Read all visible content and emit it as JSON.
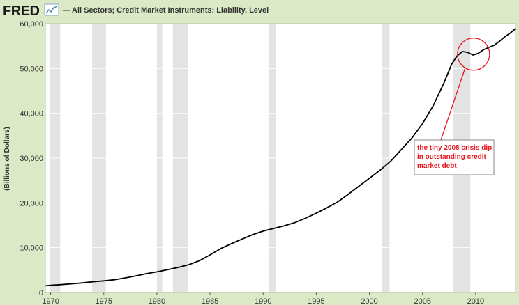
{
  "header": {
    "logo_text": "FRED",
    "logo_icon": "line-chart-icon",
    "legend_marker": "—",
    "series_title": "All Sectors; Credit Market Instruments; Liability, Level"
  },
  "colors": {
    "background": "#dbe9c6",
    "plot_background": "#ffffff",
    "recession_shade": "#e3e3e3",
    "series_line": "#000000",
    "annotation": "#e8141b"
  },
  "chart_data": {
    "type": "line",
    "title": "All Sectors; Credit Market Instruments; Liability, Level",
    "xlabel": "",
    "ylabel": "(Billions of Dollars)",
    "xlim": [
      1969.5,
      2013.75
    ],
    "ylim": [
      0,
      60000
    ],
    "grid": true,
    "x_ticks": [
      1970,
      1975,
      1980,
      1985,
      1990,
      1995,
      2000,
      2005,
      2010
    ],
    "y_ticks": [
      0,
      10000,
      20000,
      30000,
      40000,
      50000,
      60000
    ],
    "x_tick_labels": [
      "1970",
      "1975",
      "1980",
      "1985",
      "1990",
      "1995",
      "2000",
      "2005",
      "2010"
    ],
    "y_tick_labels": [
      "0",
      "10,000",
      "20,000",
      "30,000",
      "40,000",
      "50,000",
      "60,000"
    ],
    "recessions": [
      [
        1969.9,
        1970.9
      ],
      [
        1973.9,
        1975.2
      ],
      [
        1980.0,
        1980.5
      ],
      [
        1981.5,
        1982.9
      ],
      [
        1990.5,
        1991.2
      ],
      [
        2001.2,
        2001.9
      ],
      [
        2007.9,
        2009.5
      ]
    ],
    "series": [
      {
        "x": [
          1969.5,
          1970,
          1971,
          1972,
          1973,
          1974,
          1975,
          1976,
          1977,
          1978,
          1979,
          1980,
          1981,
          1982,
          1983,
          1984,
          1985,
          1986,
          1987,
          1988,
          1989,
          1990,
          1991,
          1992,
          1993,
          1994,
          1995,
          1996,
          1997,
          1998,
          1999,
          2000,
          2001,
          2002,
          2003,
          2004,
          2005,
          2006,
          2007,
          2007.75,
          2008.25,
          2008.75,
          2009.25,
          2009.75,
          2010.25,
          2010.75,
          2011.25,
          2011.75,
          2012.25,
          2012.75,
          2013.25,
          2013.75
        ],
        "values": [
          1500,
          1600,
          1750,
          1950,
          2150,
          2400,
          2600,
          2850,
          3250,
          3700,
          4200,
          4600,
          5100,
          5600,
          6200,
          7100,
          8400,
          9800,
          10900,
          11900,
          12900,
          13700,
          14300,
          14900,
          15600,
          16600,
          17700,
          18900,
          20200,
          21900,
          23700,
          25500,
          27300,
          29300,
          31900,
          34500,
          37700,
          41700,
          46700,
          51000,
          52800,
          53800,
          53600,
          53000,
          53400,
          54200,
          54700,
          55200,
          56100,
          57100,
          57900,
          58900
        ]
      }
    ],
    "annotation": {
      "text_lines": [
        "the tiny 2008 crisis dip",
        "in outstanding credit",
        "market debt"
      ],
      "target_x": 2009.8,
      "target_y": 53200
    }
  }
}
